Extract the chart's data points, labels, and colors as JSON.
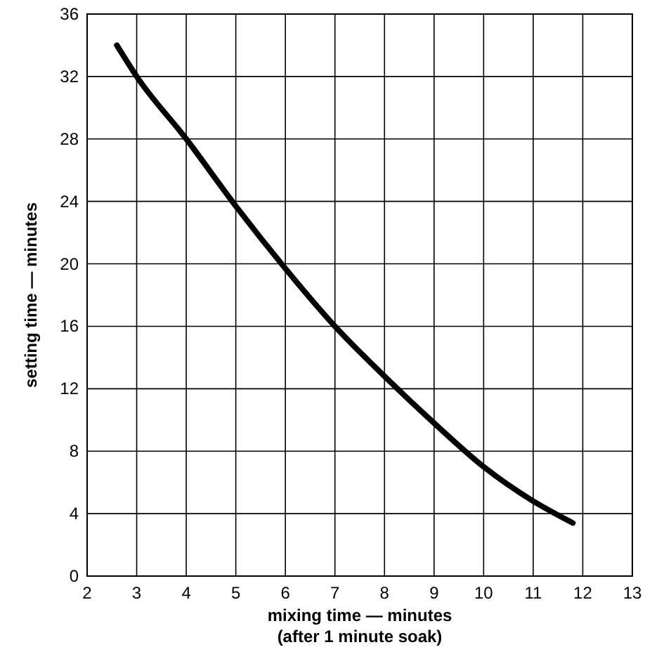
{
  "chart_data": {
    "type": "line",
    "xlabel": "mixing time — minutes\n(after 1 minute soak)",
    "ylabel": "setting time — minutes",
    "x": [
      2.6,
      3,
      4,
      5,
      6,
      7,
      8,
      9,
      10,
      11,
      11.8
    ],
    "series": [
      {
        "color": "#000000",
        "values": [
          34,
          32,
          28,
          23.7,
          19.7,
          16,
          12.8,
          9.8,
          7,
          4.8,
          3.4
        ]
      }
    ],
    "xlim": [
      2,
      13
    ],
    "xticks": [
      2,
      3,
      4,
      5,
      6,
      7,
      8,
      9,
      10,
      11,
      12,
      13
    ],
    "ylim": [
      0,
      36
    ],
    "yticks": [
      0,
      4,
      8,
      12,
      16,
      20,
      24,
      28,
      32,
      36
    ],
    "grid": true,
    "marker": "none",
    "line_style": "solid"
  }
}
